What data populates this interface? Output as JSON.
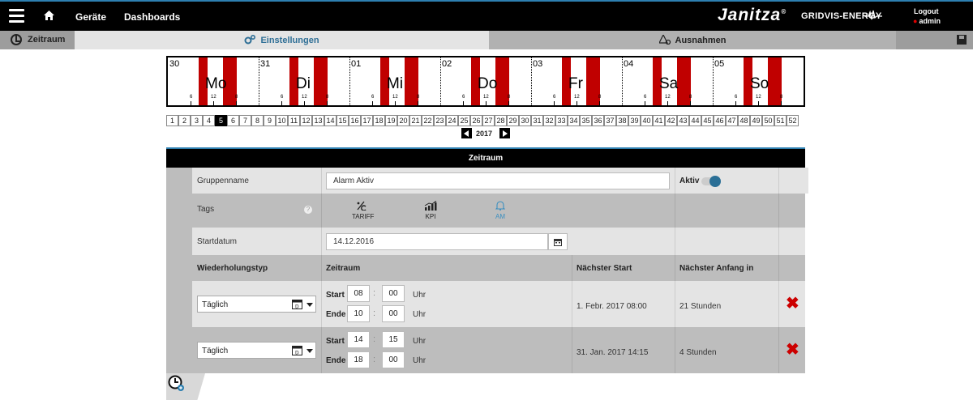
{
  "topbar": {
    "nav_devices": "Geräte",
    "nav_dashboards": "Dashboards",
    "brand": "Janitza",
    "brand_reg": "®",
    "brand_product": "GRIDVIS-ENERGY",
    "logout": "Logout",
    "user": "admin"
  },
  "subbar": {
    "period": "Zeitraum",
    "settings": "Einstellungen",
    "exceptions": "Ausnahmen"
  },
  "week": {
    "days": [
      {
        "num": "30",
        "name": "Mo"
      },
      {
        "num": "31",
        "name": "Di"
      },
      {
        "num": "01",
        "name": "Mi"
      },
      {
        "num": "02",
        "name": "Do"
      },
      {
        "num": "03",
        "name": "Fr"
      },
      {
        "num": "04",
        "name": "Sa"
      },
      {
        "num": "05",
        "name": "So"
      }
    ],
    "tick_labels": [
      "6",
      "12",
      "8"
    ]
  },
  "calendar_weeks": [
    "1",
    "2",
    "3",
    "4",
    "5",
    "6",
    "7",
    "8",
    "9",
    "10",
    "11",
    "12",
    "13",
    "14",
    "15",
    "16",
    "17",
    "18",
    "19",
    "20",
    "21",
    "22",
    "23",
    "24",
    "25",
    "26",
    "27",
    "28",
    "29",
    "30",
    "31",
    "32",
    "33",
    "34",
    "35",
    "36",
    "37",
    "38",
    "39",
    "40",
    "41",
    "42",
    "43",
    "44",
    "45",
    "46",
    "47",
    "48",
    "49",
    "50",
    "51",
    "52"
  ],
  "selected_week": "5",
  "year": "2017",
  "panel": {
    "title": "Zeitraum",
    "group_label": "Gruppenname",
    "group_value": "Alarm Aktiv",
    "active_label": "Aktiv",
    "tags_label": "Tags",
    "tags": [
      {
        "label": "TARIFF",
        "icon": "tariff-icon"
      },
      {
        "label": "KPI",
        "icon": "kpi-chart-icon"
      },
      {
        "label": "AM",
        "icon": "bell-icon"
      }
    ],
    "start_label": "Startdatum",
    "start_value": "14.12.2016",
    "col_repeat": "Wiederholungstyp",
    "col_period": "Zeitraum",
    "col_next_start": "Nächster Start",
    "col_next_in": "Nächster Anfang in",
    "start_word": "Start",
    "end_word": "Ende",
    "unit": "Uhr",
    "rows": [
      {
        "type": "Täglich",
        "start_h": "08",
        "start_m": "00",
        "end_h": "10",
        "end_m": "00",
        "next_start": "1. Febr. 2017 08:00",
        "next_in": "21 Stunden"
      },
      {
        "type": "Täglich",
        "start_h": "14",
        "start_m": "15",
        "end_h": "18",
        "end_m": "00",
        "next_start": "31. Jan. 2017 14:15",
        "next_in": "4 Stunden"
      }
    ]
  },
  "colors": {
    "accent": "#2d7fb0",
    "bar": "#c00000",
    "delete": "#cc0000"
  }
}
